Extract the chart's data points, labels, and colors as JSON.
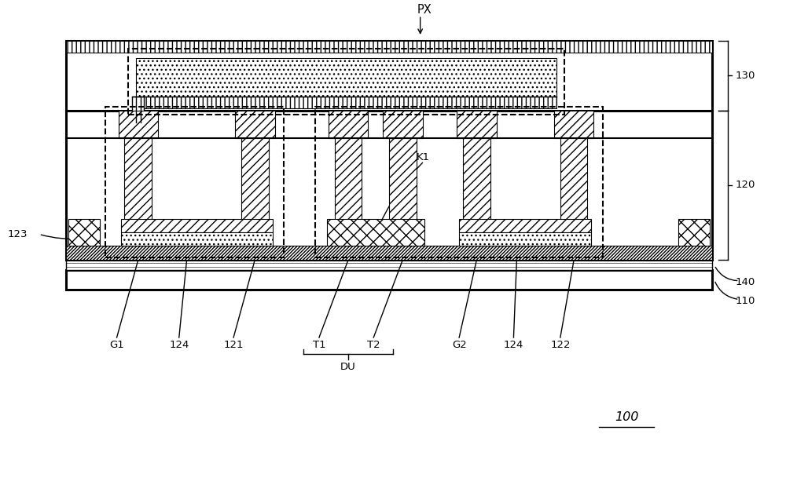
{
  "fig_width": 10.0,
  "fig_height": 6.09,
  "bg_color": "#ffffff",
  "lc": "#000000",
  "labels": {
    "PX": "PX",
    "130": "130",
    "120": "120",
    "140": "140",
    "110": "110",
    "123": "123",
    "K1": "K1",
    "G1": "G1",
    "124a": "124",
    "121": "121",
    "T1": "T1",
    "T2": "T2",
    "G2": "G2",
    "124b": "124",
    "122": "122",
    "DU": "DU",
    "100": "100"
  }
}
